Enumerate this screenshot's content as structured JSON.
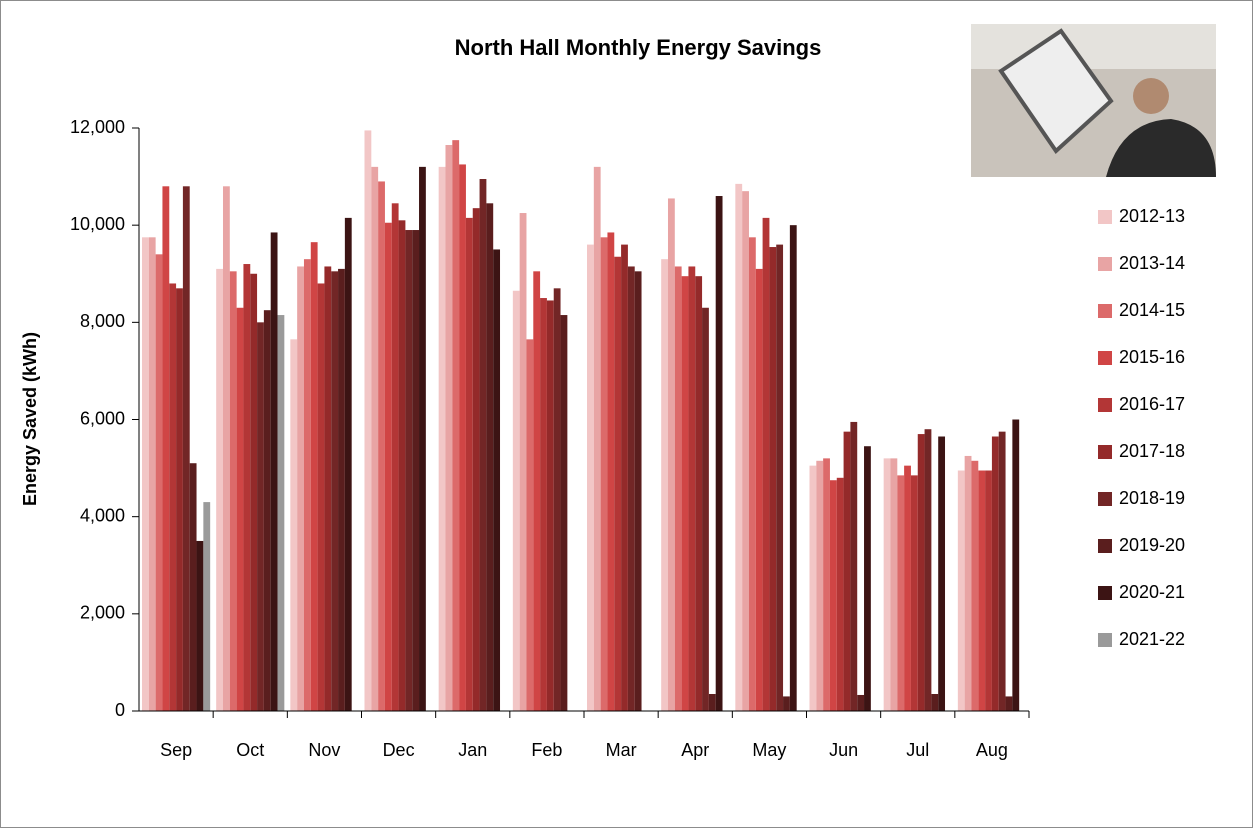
{
  "chart_data": {
    "type": "bar",
    "title": "North Hall Monthly Energy Savings",
    "y_label": "Energy Saved (kWh)",
    "categories": [
      "Sep",
      "Oct",
      "Nov",
      "Dec",
      "Jan",
      "Feb",
      "Mar",
      "Apr",
      "May",
      "Jun",
      "Jul",
      "Aug"
    ],
    "series": [
      {
        "name": "2012-13",
        "color": "#f2c6c6",
        "values": [
          9750,
          9100,
          7650,
          11950,
          11200,
          8650,
          9600,
          9300,
          10850,
          5050,
          5200,
          4950
        ]
      },
      {
        "name": "2013-14",
        "color": "#e8a4a4",
        "values": [
          9750,
          10800,
          9150,
          11200,
          11650,
          10250,
          11200,
          10550,
          10700,
          5150,
          5200,
          5250
        ]
      },
      {
        "name": "2014-15",
        "color": "#dc6a6a",
        "values": [
          9400,
          9050,
          9300,
          10900,
          11750,
          7650,
          9750,
          9150,
          9750,
          5200,
          4850,
          5150
        ]
      },
      {
        "name": "2015-16",
        "color": "#d04545",
        "values": [
          10800,
          8300,
          9650,
          10050,
          11250,
          9050,
          9850,
          8950,
          9100,
          4750,
          5050,
          4950
        ]
      },
      {
        "name": "2016-17",
        "color": "#b33636",
        "values": [
          8800,
          9200,
          8800,
          10450,
          10150,
          8500,
          9350,
          9150,
          10150,
          4800,
          4850,
          4950
        ]
      },
      {
        "name": "2017-18",
        "color": "#942a2a",
        "values": [
          8700,
          9000,
          9150,
          10100,
          10350,
          8450,
          9600,
          8950,
          9550,
          5750,
          5700,
          5650
        ]
      },
      {
        "name": "2018-19",
        "color": "#722626",
        "values": [
          10800,
          8000,
          9050,
          9900,
          10950,
          8700,
          9150,
          8300,
          9600,
          5950,
          5800,
          5750
        ]
      },
      {
        "name": "2019-20",
        "color": "#5a1e1e",
        "values": [
          5100,
          8250,
          9100,
          9900,
          10450,
          8150,
          9050,
          350,
          300,
          330,
          350,
          300
        ]
      },
      {
        "name": "2020-21",
        "color": "#3c1414",
        "values": [
          3500,
          9850,
          10150,
          11200,
          9500,
          null,
          null,
          10600,
          10000,
          5450,
          5650,
          6000
        ]
      },
      {
        "name": "2021-22",
        "color": "#9a9a9a",
        "values": [
          4300,
          8150,
          null,
          null,
          null,
          null,
          null,
          null,
          null,
          null,
          null,
          null
        ]
      }
    ],
    "ylim": [
      0,
      12000
    ],
    "yticks": [
      0,
      {
        "value": 2000,
        "label": "2,000"
      },
      {
        "value": 4000,
        "label": "4,000"
      },
      {
        "value": 6000,
        "label": "6,000"
      },
      {
        "value": 8000,
        "label": "8,000"
      },
      {
        "value": 10000,
        "label": "10,000"
      },
      {
        "value": 12000,
        "label": "12,000"
      }
    ],
    "legend": "right"
  }
}
